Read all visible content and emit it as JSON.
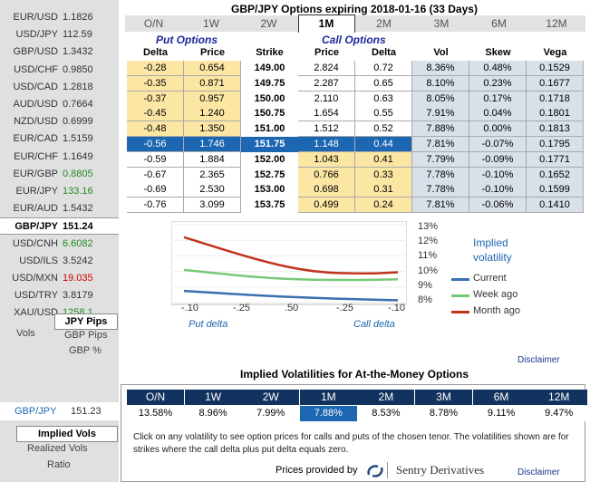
{
  "sidebar": {
    "pairs": [
      {
        "name": "EUR/USD",
        "value": "1.1826",
        "tone": "neutral"
      },
      {
        "name": "USD/JPY",
        "value": "112.59",
        "tone": "neutral"
      },
      {
        "name": "GBP/USD",
        "value": "1.3432",
        "tone": "neutral"
      },
      {
        "name": "USD/CHF",
        "value": "0.9850",
        "tone": "neutral"
      },
      {
        "name": "USD/CAD",
        "value": "1.2818",
        "tone": "neutral"
      },
      {
        "name": "AUD/USD",
        "value": "0.7664",
        "tone": "neutral"
      },
      {
        "name": "NZD/USD",
        "value": "0.6999",
        "tone": "neutral"
      },
      {
        "name": "EUR/CAD",
        "value": "1.5159",
        "tone": "neutral"
      },
      {
        "name": "EUR/CHF",
        "value": "1.1649",
        "tone": "neutral"
      },
      {
        "name": "EUR/GBP",
        "value": "0.8805",
        "tone": "up"
      },
      {
        "name": "EUR/JPY",
        "value": "133.16",
        "tone": "up"
      },
      {
        "name": "EUR/AUD",
        "value": "1.5432",
        "tone": "neutral"
      },
      {
        "name": "GBP/JPY",
        "value": "151.24",
        "tone": "selected"
      },
      {
        "name": "USD/CNH",
        "value": "6.6082",
        "tone": "up"
      },
      {
        "name": "USD/ILS",
        "value": "3.5242",
        "tone": "neutral"
      },
      {
        "name": "USD/MXN",
        "value": "19.035",
        "tone": "down"
      },
      {
        "name": "USD/TRY",
        "value": "3.8179",
        "tone": "neutral"
      },
      {
        "name": "XAU/USD",
        "value": "1258.1",
        "tone": "up"
      }
    ],
    "vols_label": "Vols",
    "jpy_pips": "JPY Pips",
    "gbp_pips": "GBP Pips",
    "gbp_pct": "GBP %",
    "bottom_pair": "GBP/JPY",
    "bottom_value": "151.23",
    "implied_vols": "Implied Vols",
    "realized_vols": "Realized Vols",
    "ratio": "Ratio"
  },
  "title": "GBP/JPY Options expiring 2018-01-16 (33 Days)",
  "tenors": [
    "O/N",
    "1W",
    "2W",
    "1M",
    "2M",
    "3M",
    "6M",
    "12M"
  ],
  "selected_tenor_index": 3,
  "headers": {
    "put_options": "Put Options",
    "call_options": "Call Options",
    "delta": "Delta",
    "price": "Price",
    "strike": "Strike",
    "call_price": "Price",
    "call_delta": "Delta",
    "vol": "Vol",
    "skew": "Skew",
    "vega": "Vega"
  },
  "rows": [
    {
      "pd": "-0.28",
      "pp": "0.654",
      "k": "149.00",
      "cp": "2.824",
      "cd": "0.72",
      "vol": "8.36%",
      "skew": "0.48%",
      "vega": "0.1529"
    },
    {
      "pd": "-0.35",
      "pp": "0.871",
      "k": "149.75",
      "cp": "2.287",
      "cd": "0.65",
      "vol": "8.10%",
      "skew": "0.23%",
      "vega": "0.1677"
    },
    {
      "pd": "-0.37",
      "pp": "0.957",
      "k": "150.00",
      "cp": "2.110",
      "cd": "0.63",
      "vol": "8.05%",
      "skew": "0.17%",
      "vega": "0.1718"
    },
    {
      "pd": "-0.45",
      "pp": "1.240",
      "k": "150.75",
      "cp": "1.654",
      "cd": "0.55",
      "vol": "7.91%",
      "skew": "0.04%",
      "vega": "0.1801"
    },
    {
      "pd": "-0.48",
      "pp": "1.350",
      "k": "151.00",
      "cp": "1.512",
      "cd": "0.52",
      "vol": "7.88%",
      "skew": "0.00%",
      "vega": "0.1813"
    },
    {
      "pd": "-0.56",
      "pp": "1.746",
      "k": "151.75",
      "cp": "1.148",
      "cd": "0.44",
      "vol": "7.81%",
      "skew": "-0.07%",
      "vega": "0.1795"
    },
    {
      "pd": "-0.59",
      "pp": "1.884",
      "k": "152.00",
      "cp": "1.043",
      "cd": "0.41",
      "vol": "7.79%",
      "skew": "-0.09%",
      "vega": "0.1771"
    },
    {
      "pd": "-0.67",
      "pp": "2.365",
      "k": "152.75",
      "cp": "0.766",
      "cd": "0.33",
      "vol": "7.78%",
      "skew": "-0.10%",
      "vega": "0.1652"
    },
    {
      "pd": "-0.69",
      "pp": "2.530",
      "k": "153.00",
      "cp": "0.698",
      "cd": "0.31",
      "vol": "7.78%",
      "skew": "-0.10%",
      "vega": "0.1599"
    },
    {
      "pd": "-0.76",
      "pp": "3.099",
      "k": "153.75",
      "cp": "0.499",
      "cd": "0.24",
      "vol": "7.81%",
      "skew": "-0.06%",
      "vega": "0.1410"
    }
  ],
  "selected_row_index": 5,
  "chart_data": {
    "type": "line",
    "title": "Implied volatility",
    "xlabel_left": "Put delta",
    "xlabel_right": "Call delta",
    "x_ticks": [
      "-.10",
      "-.25",
      ".50",
      "-.25",
      "-.10"
    ],
    "y_ticks": [
      "13%",
      "12%",
      "11%",
      "10%",
      "9%",
      "8%"
    ],
    "ylim": [
      8,
      13
    ],
    "series": [
      {
        "name": "Current",
        "color": "#3a6fb0",
        "values": [
          [
            -0.1,
            8.75
          ],
          [
            0.25,
            8.45
          ],
          [
            0.5,
            8.3
          ],
          [
            0.75,
            8.2
          ],
          [
            0.9,
            8.15
          ]
        ]
      },
      {
        "name": "Week ago",
        "color": "#77c977",
        "values": [
          [
            -0.1,
            10.1
          ],
          [
            0.25,
            9.6
          ],
          [
            0.5,
            9.45
          ],
          [
            0.75,
            9.45
          ],
          [
            0.9,
            9.5
          ]
        ]
      },
      {
        "name": "Month ago",
        "color": "#c0341c",
        "values": [
          [
            -0.1,
            12.2
          ],
          [
            0.25,
            10.7
          ],
          [
            0.5,
            9.95
          ],
          [
            0.75,
            9.85
          ],
          [
            0.9,
            9.95
          ]
        ]
      }
    ]
  },
  "disclaimer": "Disclaimer",
  "iv_title": "Implied Volatilities for At-the-Money Options",
  "iv_values": [
    "13.58%",
    "8.96%",
    "7.99%",
    "7.88%",
    "8.53%",
    "8.78%",
    "9.11%",
    "9.47%"
  ],
  "iv_note": "Click on any volatility to see option prices for calls and puts of the chosen tenor. The volatilities shown are for strikes where the call delta plus put delta equals zero.",
  "prices_provided_by": "Prices provided by",
  "provider": "Sentry Derivatives",
  "colors": {
    "navy": "#12335f",
    "selected": "#1c66b2",
    "put_bg": "#fbe6a4",
    "vol_bg": "#d8e0ea"
  }
}
